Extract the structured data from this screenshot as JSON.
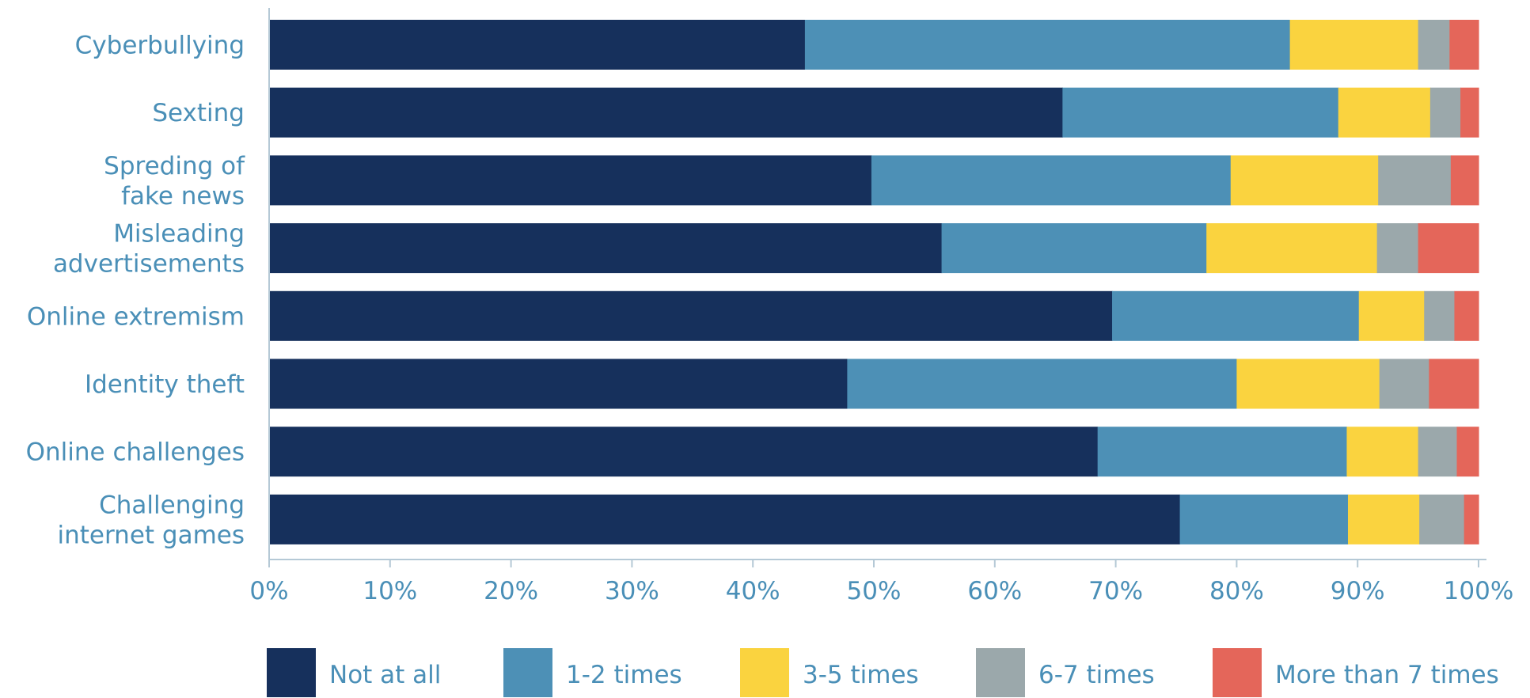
{
  "chart_data": {
    "type": "bar",
    "orientation": "horizontal",
    "stacked": true,
    "categories": [
      [
        "Cyberbullying"
      ],
      [
        "Sexting"
      ],
      [
        "Spreding of",
        "fake news"
      ],
      [
        "Misleading",
        "advertisements"
      ],
      [
        "Online extremism"
      ],
      [
        "Identity theft"
      ],
      [
        "Online challenges"
      ],
      [
        "Challenging",
        "internet games"
      ]
    ],
    "series": [
      {
        "name": "Not at all",
        "color": "#16305c",
        "values": [
          44.3,
          65.6,
          49.8,
          55.6,
          69.7,
          47.8,
          68.5,
          75.3
        ]
      },
      {
        "name": "1-2 times",
        "color": "#4d90b6",
        "values": [
          40.1,
          22.8,
          29.7,
          21.9,
          20.4,
          32.2,
          20.6,
          13.9
        ]
      },
      {
        "name": "3-5 times",
        "color": "#fad33f",
        "values": [
          10.6,
          7.6,
          12.2,
          14.1,
          5.4,
          11.8,
          5.9,
          5.9
        ]
      },
      {
        "name": "6-7 times",
        "color": "#9ba8ab",
        "values": [
          2.6,
          2.5,
          6.0,
          3.4,
          2.5,
          4.1,
          3.2,
          3.7
        ]
      },
      {
        "name": "More than 7 times",
        "color": "#e4665a",
        "values": [
          2.4,
          1.5,
          2.3,
          5.0,
          2.0,
          4.1,
          1.8,
          1.2
        ]
      }
    ],
    "xlim": [
      0,
      100
    ],
    "xticks": [
      "0%",
      "10%",
      "20%",
      "30%",
      "40%",
      "50%",
      "60%",
      "70%",
      "80%",
      "90%",
      "100%"
    ],
    "grid": false,
    "legend_position": "bottom"
  }
}
